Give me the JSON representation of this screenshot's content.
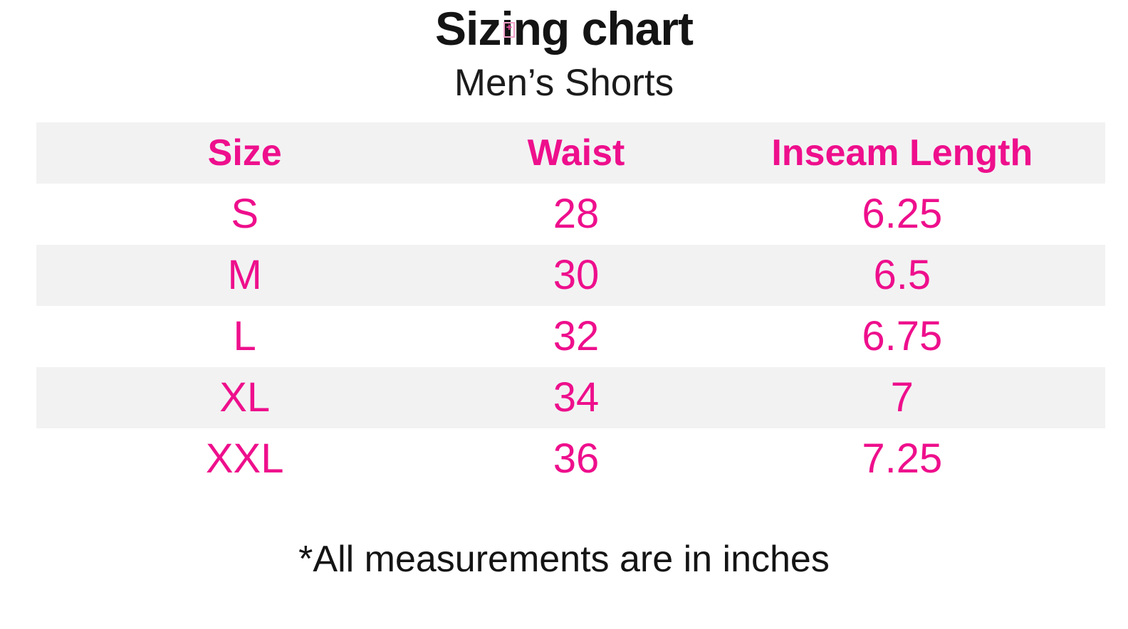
{
  "page": {
    "title": "Sizing chart",
    "subtitle": "Men’s Shorts",
    "footnote": "*All measurements are in inches"
  },
  "colors": {
    "accent_pink": "#EE0F8C",
    "alternating_row_bg": "#F2F2F3",
    "text_color": "#161616",
    "background": "#FFFFFF"
  },
  "artifacts": {
    "broken_image_glyph": "+"
  },
  "chart_data": {
    "type": "table",
    "title": "Sizing chart",
    "subtitle": "Men’s Shorts",
    "columns": [
      "Size",
      "Waist",
      "Inseam Length"
    ],
    "rows": [
      [
        "S",
        "28",
        "6.25"
      ],
      [
        "M",
        "30",
        "6.5"
      ],
      [
        "L",
        "32",
        "6.75"
      ],
      [
        "XL",
        "34",
        "7"
      ],
      [
        "XXL",
        "36",
        "7.25"
      ]
    ],
    "units": "inches",
    "footnote": "*All measurements are in inches",
    "layout": {
      "header_bg": "#F2F2F3",
      "alternating_rows": true,
      "text_alignment": "center"
    }
  }
}
